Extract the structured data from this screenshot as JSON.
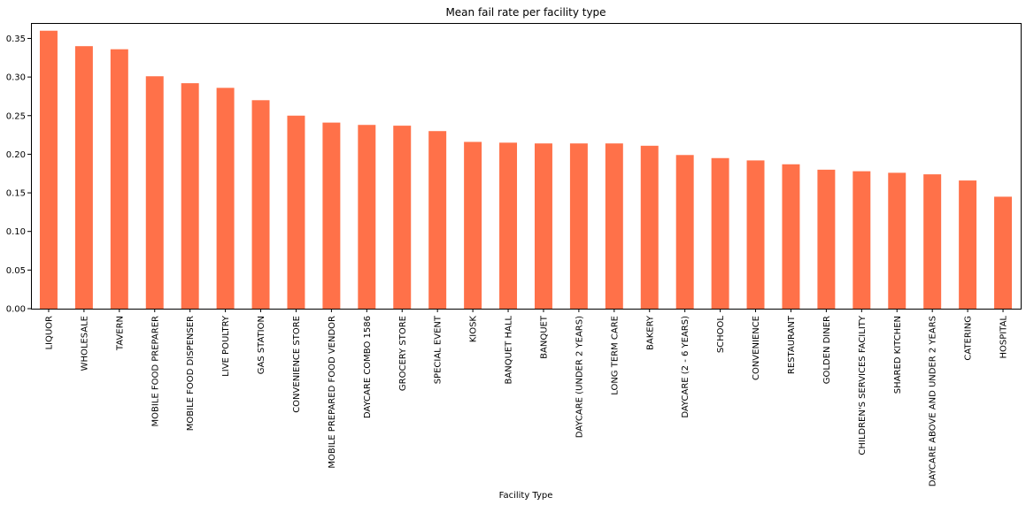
{
  "chart_data": {
    "type": "bar",
    "title": "Mean fail rate per facility type",
    "xlabel": "Facility Type",
    "ylabel": "",
    "ylim": [
      0,
      0.37
    ],
    "yticks": [
      "0.00",
      "0.05",
      "0.10",
      "0.15",
      "0.20",
      "0.25",
      "0.30",
      "0.35"
    ],
    "grid": false,
    "bar_color": "#FF7149",
    "categories": [
      "LIQUOR",
      "WHOLESALE",
      "TAVERN",
      "MOBILE FOOD PREPARER",
      "MOBILE FOOD DISPENSER",
      "LIVE POULTRY",
      "GAS STATION",
      "CONVENIENCE STORE",
      "MOBILE PREPARED FOOD VENDOR",
      "DAYCARE COMBO 1586",
      "GROCERY STORE",
      "SPECIAL EVENT",
      "KIOSK",
      "BANQUET HALL",
      "BANQUET",
      "DAYCARE (UNDER 2 YEARS)",
      "LONG TERM CARE",
      "BAKERY",
      "DAYCARE (2 - 6 YEARS)",
      "SCHOOL",
      "CONVENIENCE",
      "RESTAURANT",
      "GOLDEN DINER",
      "CHILDREN'S SERVICES FACILITY",
      "SHARED KITCHEN",
      "DAYCARE ABOVE AND UNDER 2 YEARS",
      "CATERING",
      "HOSPITAL"
    ],
    "values": [
      0.36,
      0.34,
      0.336,
      0.301,
      0.292,
      0.286,
      0.27,
      0.25,
      0.241,
      0.238,
      0.237,
      0.23,
      0.216,
      0.215,
      0.214,
      0.214,
      0.214,
      0.211,
      0.199,
      0.195,
      0.192,
      0.187,
      0.18,
      0.178,
      0.176,
      0.174,
      0.166,
      0.145
    ]
  }
}
